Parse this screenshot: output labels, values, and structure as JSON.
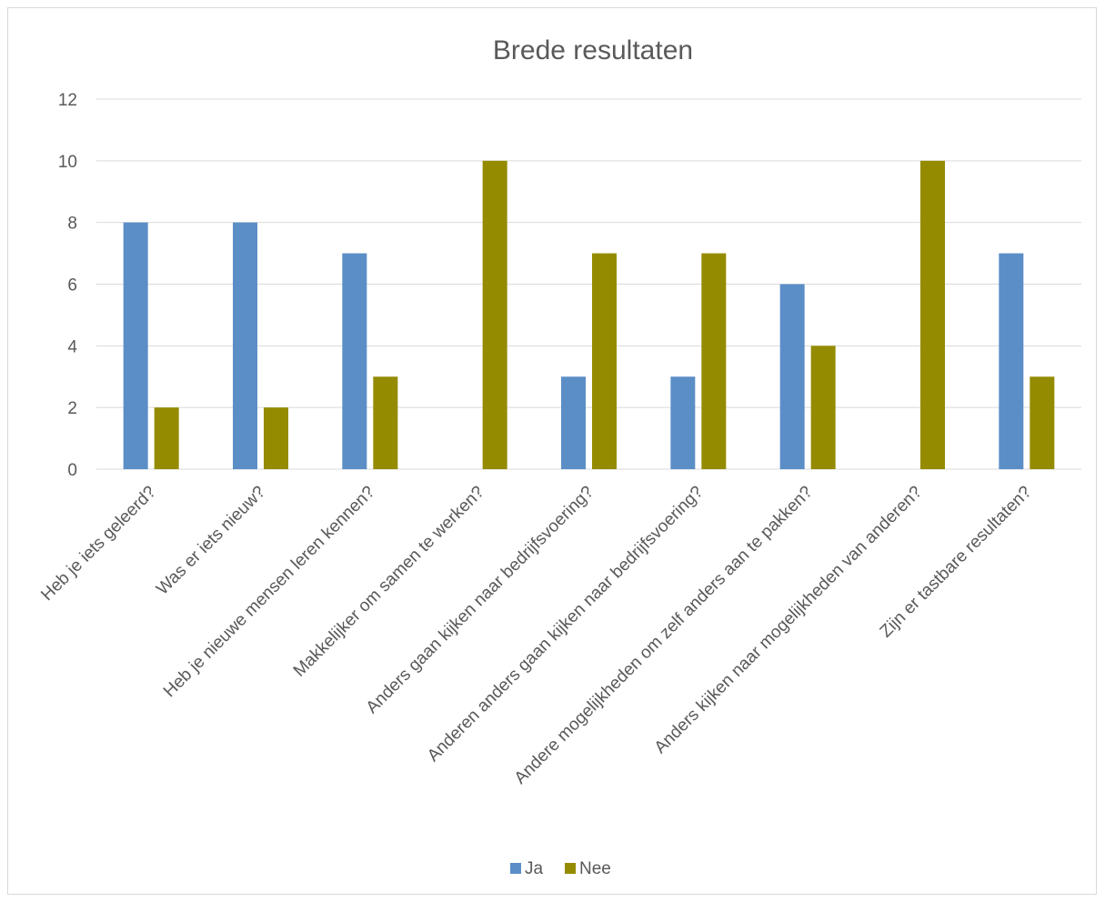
{
  "chart_data": {
    "type": "bar",
    "title": "Brede resultaten",
    "categories": [
      "Heb je iets geleerd?",
      "Was er iets nieuw?",
      "Heb je nieuwe mensen leren kennen?",
      "Makkelijker om samen te werken?",
      "Anders gaan kijken naar bedrijfsvoering?",
      "Anderen anders gaan kijken naar bedrijfsvoering?",
      "Andere mogelijkheden om zelf anders aan te pakken?",
      "Anders kijken naar mogelijkheden van anderen?",
      "Zijn er tastbare resultaten?"
    ],
    "series": [
      {
        "name": "Ja",
        "color": "#5b8ec7",
        "values": [
          8,
          8,
          7,
          0,
          3,
          3,
          6,
          0,
          7
        ]
      },
      {
        "name": "Nee",
        "color": "#958b00",
        "values": [
          2,
          2,
          3,
          10,
          7,
          7,
          4,
          10,
          3
        ]
      }
    ],
    "yticks": [
      "0",
      "2",
      "4",
      "6",
      "8",
      "10",
      "12"
    ],
    "ylim": [
      0,
      12
    ],
    "grid": true,
    "legend_position": "bottom"
  }
}
